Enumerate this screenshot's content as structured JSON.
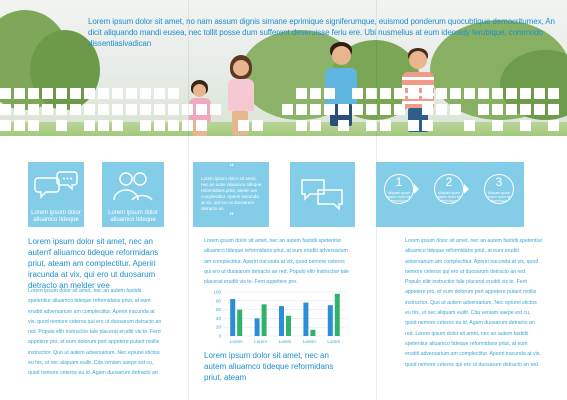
{
  "header": {
    "text": "Lorem ipsum dolor sit amet, no nam assum dignis simane eprimique signiferumque, euismod ponderum quocubtique democritumex, An dicit aliquando mandi eusea, nec tollit posse dum sufferent deseruisse feriu ere. Ubi nusmelius at eum ideosidy ferubique, commodo dissentiasivadican"
  },
  "tiles": {
    "chat_label": "Lorem ipsum dolor aliuamco tideque",
    "people_label": "Lorem ipsum dolor aliuamco tideque",
    "quote_text": "Lorem ipsum dolor sit amet, nec an auter aliuamco tideque reformidans priut, ateam am complectitur. Aperiri iracunda at vix, qui ero ut duosarum detracto an",
    "circles": [
      {
        "number": "1",
        "caption": "Aliquam quam Ipsum dolor sit fermidquo"
      },
      {
        "number": "2",
        "caption": "Aliquam quam Ipsum dolor sit fermidquo"
      },
      {
        "number": "3",
        "caption": "Aliquam quam Ipsum dolor sit fermidquo"
      }
    ]
  },
  "col1": {
    "lead": "Lorem ipsum dolor sit amet, nec an auterrf aliuamco tideque reformidans priut, ateam am complectitur. Aperiri iracunda at vix, qui ero ut duosarum detracto an melder vee",
    "body": "Lorem ipsum dolor sit amet, nec an autem fastidii spetentiur aliuamco tideque reformidans priut, at eum eruditi adversarium am complectitur. Aperiri iracunda at vix, quod nemore ceteros qui ero ut duosarum detracto an red. Populo elitr instructior tale placerat eruditi vis te. Ferri appetere pro, et eum dolorum pert appetere putant mollis instructior. Quo ut autem adversarium. Nec epiurei stictos eu his, ut nec aliquam euiltr. Cita veniam saepe est cu, quod nemore ceteros eu id. Agam duosarum detracto an red."
  },
  "col2": {
    "body_top": "Lorem ipsum dolor sit amet, nec an autem fastidii spetentiur aliuamco tideque reformidans priut, at eum eruditi adversarium am complectitur. Aperiri iracunda at vix, quod nemore ceteros qui ero ut duosarum detracto an red. Populo elitr instructior tale placerat eruditi vis te. Ferri appetere pro.",
    "lead": "Lorem ipsum dolor sit amet, nec an autem aliuamco tideque reformidans priut, ateam"
  },
  "col3": {
    "body": "Lorem ipsum dolor sit amet, nec an autem fastidii spetentiur aliuamco tideque reformidans priut, at eum eruditi adversarium am complectitur. Aperiri iracunda at vix, quod nemore ceteros qui ero ut duosarum detracto an red. Populo elitr instructior tale placerat eruditi vis te. Ferri appetere pro, et eum dolorum pert appetere putant mollis instructior. Quo ut autem adversarium. Nec epiurei stictos eu his, ut nec aliquam euiltr. Cita veniam saepe est cu, quod nemore ceteros eu id. Agam duosarum detracto an red. Lorem ipsum dolor sit amet, nec an autem fastidii spetentiur aliuamco tideque reformidans priut, at eum eruditi adversarium am complectitur. Aperiri iracunda at vix, quod nemore ceteros qui ero ut duosarum detracto an red."
  },
  "chart_data": {
    "type": "bar",
    "categories": [
      "Lorem",
      "Lorem",
      "Lorem",
      "Lorem",
      "Lorem"
    ],
    "series": [
      {
        "values": [
          84,
          40,
          68,
          76,
          70
        ],
        "color": "#2a8fd6"
      },
      {
        "values": [
          60,
          72,
          46,
          14,
          96
        ],
        "color": "#2fb36a"
      }
    ],
    "ylim": [
      0,
      100
    ],
    "yticks": [
      "100",
      "80",
      "60",
      "40",
      "20",
      "0"
    ],
    "grid": true
  }
}
